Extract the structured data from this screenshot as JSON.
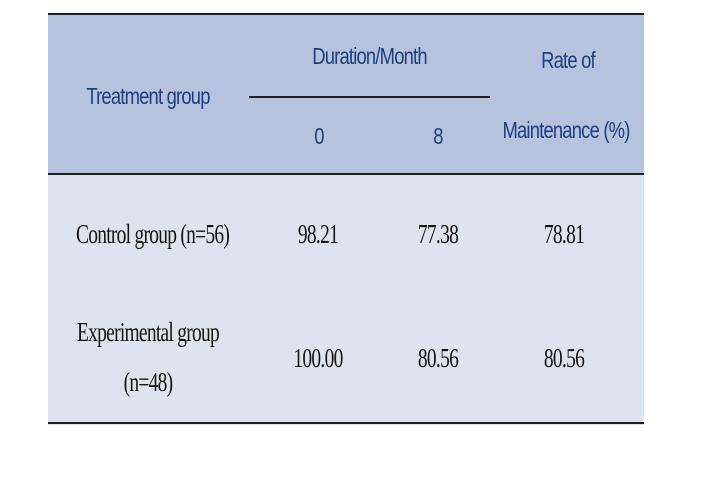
{
  "header": {
    "treatment_group": "Treatment group",
    "duration": "Duration/Month",
    "duration_sub": [
      "0",
      "8"
    ],
    "rate_line1": "Rate of",
    "rate_line2": "Maintenance (%)"
  },
  "rows": [
    {
      "group_line1": "Control group (n=56)",
      "group_line2": "",
      "month0": "98.21",
      "month8": "77.38",
      "rate": "78.81"
    },
    {
      "group_line1": "Experimental group",
      "group_line2": "(n=48)",
      "month0": "100.00",
      "month8": "80.56",
      "rate": "80.56"
    }
  ]
}
